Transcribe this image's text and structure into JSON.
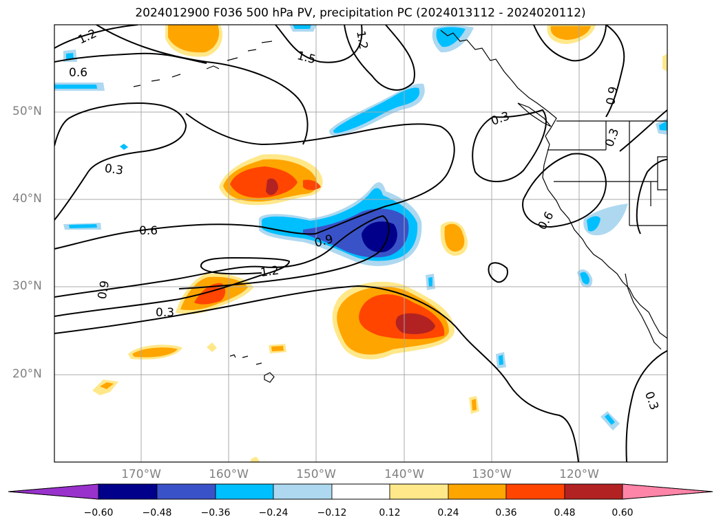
{
  "title": "2024012900 F036 500 hPa PV, precipitation PC (2024013112 - 2024020112)",
  "latitude_labels": [
    "50°N",
    "40°N",
    "30°N",
    "20°N"
  ],
  "longitude_labels": [
    "170°W",
    "160°W",
    "150°W",
    "140°W",
    "130°W",
    "120°W"
  ],
  "pv_contour_labels": [
    "1.2",
    "0.6",
    "1.5",
    "1.2",
    "0.3",
    "0.6",
    "0.9",
    "1.2",
    "0.3",
    "0.9",
    "0.3",
    "0.6",
    "0.9",
    "0.3",
    "0.3"
  ],
  "colorbar": {
    "tick_labels": [
      "−0.60",
      "−0.48",
      "−0.36",
      "−0.24",
      "−0.12",
      "0.12",
      "0.24",
      "0.36",
      "0.48",
      "0.60"
    ],
    "colors": [
      "#9932cc",
      "#00008b",
      "#3a52c8",
      "#00bfff",
      "#add8f0",
      "#ffffff",
      "#ffe88a",
      "#ffa500",
      "#ff4500",
      "#b22222",
      "#ff85a8"
    ]
  },
  "shading_colors": {
    "neg_weak": "#add8f0",
    "neg_mod": "#00bfff",
    "neg_strong": "#3a52c8",
    "neg_max": "#00008b",
    "pos_weak": "#ffe88a",
    "pos_mod": "#ffa500",
    "pos_strong": "#ff4500",
    "pos_max": "#b22222"
  }
}
